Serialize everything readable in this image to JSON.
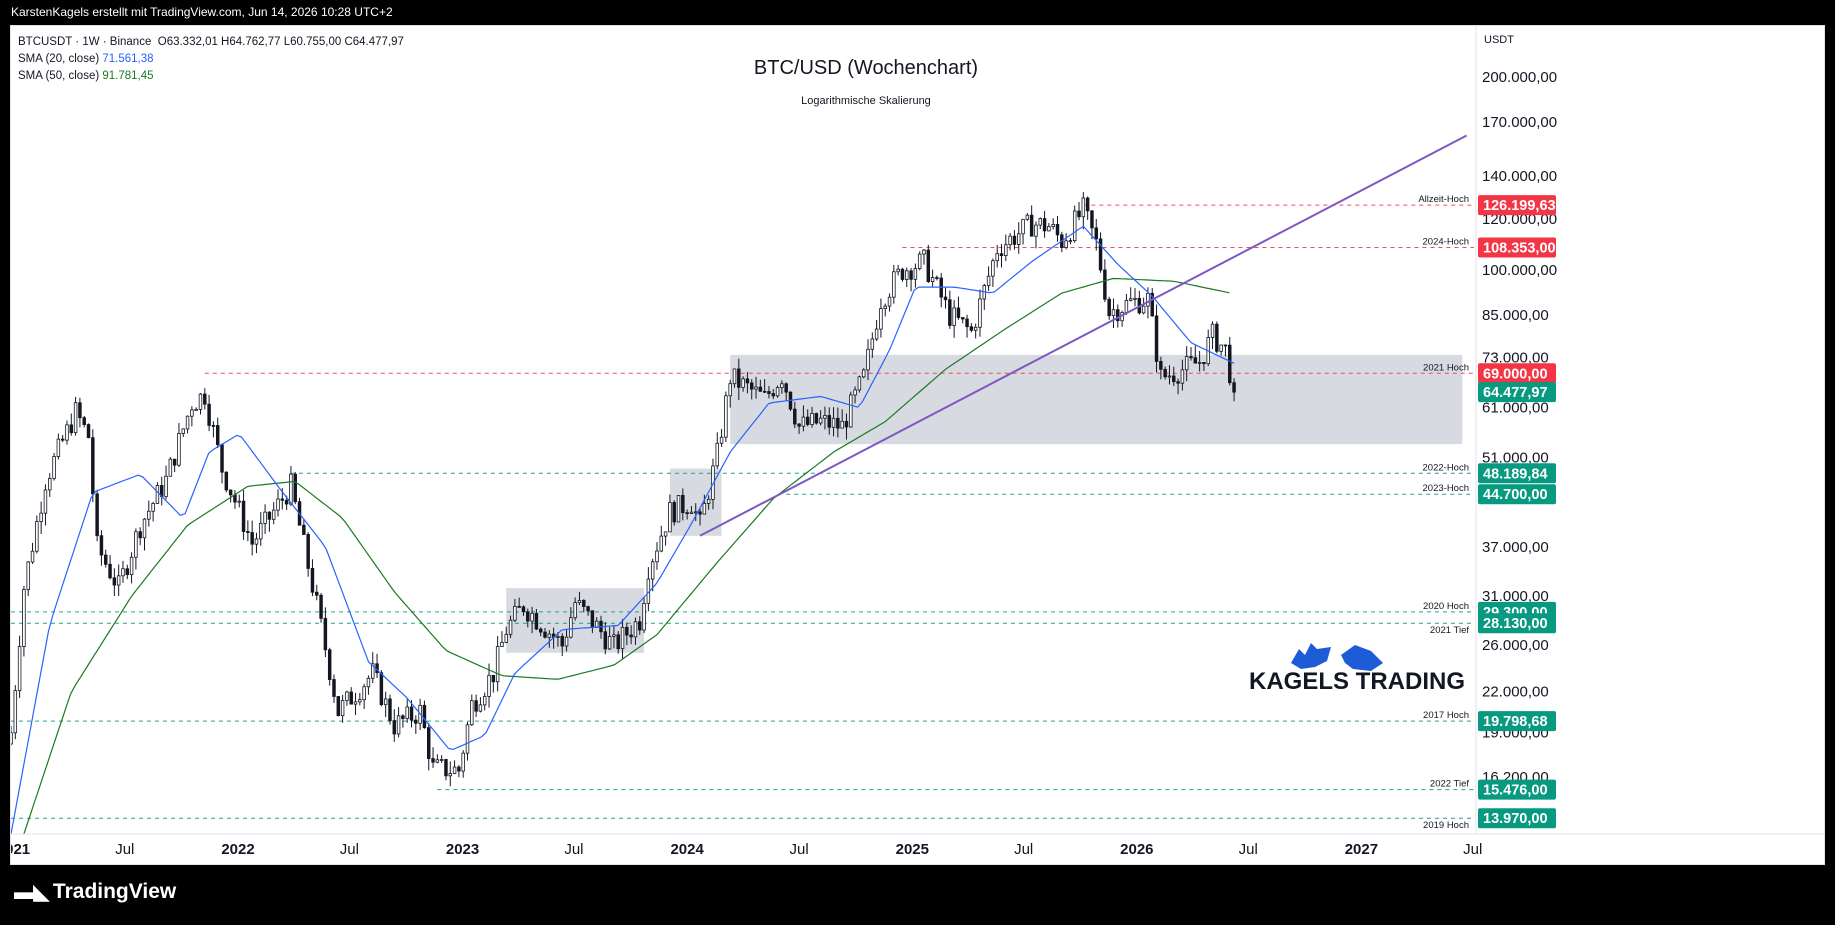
{
  "header": {
    "attribution": "KarstenKagels erstellt mit TradingView.com, Jun 14, 2026 10:28 UTC+2"
  },
  "legend": {
    "symbol": "BTCUSDT · 1W · Binance",
    "ohlc": "O63.332,01 H64.762,77 L60.755,00 C64.477,97",
    "sma20_label": "SMA (20, close)",
    "sma20_value": "71.561,38",
    "sma50_label": "SMA (50, close)",
    "sma50_value": "91.781,45"
  },
  "footer": {
    "brand": "TradingView"
  },
  "branding": {
    "kagels": "KAGELS TRADING"
  },
  "colors": {
    "up": "#089981",
    "down": "#f23645",
    "candle": "#131722",
    "sma20": "#2962ff",
    "sma50": "#1b7a22",
    "trendline": "#7e57c2",
    "red_level": "#f23645",
    "green_level": "#089981",
    "zone": "#d1d4dc"
  },
  "chart_data": {
    "type": "candlestick",
    "title": "BTC/USD (Wochenchart)",
    "subtitle": "Logarithmische Skalierung",
    "scale": "log",
    "currency": "USDT",
    "y_ticks": [
      "200.000,00",
      "170.000,00",
      "140.000,00",
      "120.000,00",
      "100.000,00",
      "85.000,00",
      "73.000,00",
      "61.000,00",
      "51.000,00",
      "37.000,00",
      "31.000,00",
      "26.000,00",
      "22.000,00",
      "19.000,00",
      "16.200,00"
    ],
    "y_tick_values": [
      200000,
      170000,
      140000,
      120000,
      100000,
      85000,
      73000,
      61000,
      51000,
      37000,
      31000,
      26000,
      22000,
      19000,
      16200
    ],
    "x_ticks": [
      "2021",
      "Jul",
      "2022",
      "Jul",
      "2023",
      "Jul",
      "2024",
      "Jul",
      "2025",
      "Jul",
      "2026",
      "Jul",
      "2027",
      "Jul"
    ],
    "x_tick_dates": [
      "2021-01-01",
      "2021-07-01",
      "2022-01-01",
      "2022-07-01",
      "2023-01-01",
      "2023-07-01",
      "2024-01-01",
      "2024-07-01",
      "2025-01-01",
      "2025-07-01",
      "2026-01-01",
      "2026-07-01",
      "2027-01-01",
      "2027-07-01"
    ],
    "x_range": [
      "2020-12-28",
      "2027-07-03"
    ],
    "y_range": [
      13200,
      240000
    ],
    "last_price": 64477.97,
    "last_price_label": "64.477,97",
    "levels": [
      {
        "label": "Allzeit-Hoch",
        "value": 126199.63,
        "value_label": "126.199,63",
        "color": "red",
        "from": "2025-10-06"
      },
      {
        "label": "2024-Hoch",
        "value": 108353.0,
        "value_label": "108.353,00",
        "color": "red",
        "from": "2024-12-16"
      },
      {
        "label": "2021 Hoch",
        "value": 69000.0,
        "value_label": "69.000,00",
        "color": "red",
        "from": "2021-11-08"
      },
      {
        "label": "2022-Hoch",
        "value": 48189.84,
        "value_label": "48.189,84",
        "color": "green",
        "from": "2022-03-28"
      },
      {
        "label": "2023-Hoch",
        "value": 44700.0,
        "value_label": "44.700,00",
        "color": "green",
        "from": "2024-06-10"
      },
      {
        "label": "2020 Hoch",
        "value": 29300.0,
        "value_label": "29.300,00",
        "color": "green",
        "from": "2020-12-28"
      },
      {
        "label": "2021 Tief",
        "value": 28130.0,
        "value_label": "28.130,00",
        "color": "green",
        "from": "2020-12-28"
      },
      {
        "label": "2017 Hoch",
        "value": 19798.68,
        "value_label": "19.798,68",
        "color": "green",
        "from": "2020-12-28"
      },
      {
        "label": "2022 Tief",
        "value": 15476.0,
        "value_label": "15.476,00",
        "color": "green",
        "from": "2022-11-21"
      },
      {
        "label": "2019 Hoch",
        "value": 13970.0,
        "value_label": "13.970,00",
        "color": "green",
        "from": "2020-12-28"
      }
    ],
    "zones": [
      {
        "from": "2023-03-13",
        "to": "2023-10-23",
        "low": 25300,
        "high": 31900
      },
      {
        "from": "2023-12-04",
        "to": "2024-02-26",
        "low": 38500,
        "high": 49000
      },
      {
        "from": "2024-03-11",
        "to": "2027-06-14",
        "low": 53500,
        "high": 73700
      }
    ],
    "trendline": [
      {
        "date": "2024-01-22",
        "value": 38500
      },
      {
        "date": "2027-06-21",
        "value": 162000
      }
    ],
    "sma_anchors": {
      "sma20": [
        [
          "2020-12-28",
          13200
        ],
        [
          "2021-03-01",
          28000
        ],
        [
          "2021-05-10",
          45000
        ],
        [
          "2021-07-26",
          48000
        ],
        [
          "2021-10-04",
          41000
        ],
        [
          "2021-11-15",
          52000
        ],
        [
          "2022-01-03",
          55500
        ],
        [
          "2022-03-07",
          46000
        ],
        [
          "2022-05-23",
          37000
        ],
        [
          "2022-08-01",
          24500
        ],
        [
          "2022-10-03",
          21500
        ],
        [
          "2022-12-12",
          17800
        ],
        [
          "2023-02-06",
          18800
        ],
        [
          "2023-03-27",
          23500
        ],
        [
          "2023-06-12",
          27500
        ],
        [
          "2023-09-11",
          27900
        ],
        [
          "2023-11-13",
          32500
        ],
        [
          "2024-01-08",
          40200
        ],
        [
          "2024-03-11",
          52000
        ],
        [
          "2024-05-13",
          62000
        ],
        [
          "2024-08-05",
          63500
        ],
        [
          "2024-10-07",
          61000
        ],
        [
          "2024-11-25",
          75000
        ],
        [
          "2025-01-06",
          94000
        ],
        [
          "2025-03-10",
          94000
        ],
        [
          "2025-05-12",
          92000
        ],
        [
          "2025-07-14",
          103000
        ],
        [
          "2025-10-06",
          117000
        ],
        [
          "2025-12-01",
          102000
        ],
        [
          "2026-01-26",
          91000
        ],
        [
          "2026-03-30",
          77000
        ],
        [
          "2026-06-08",
          71500
        ]
      ],
      "sma50": [
        [
          "2021-01-18",
          13200
        ],
        [
          "2021-04-05",
          22000
        ],
        [
          "2021-07-12",
          31000
        ],
        [
          "2021-10-11",
          40000
        ],
        [
          "2022-01-17",
          46000
        ],
        [
          "2022-04-04",
          46800
        ],
        [
          "2022-06-20",
          41000
        ],
        [
          "2022-09-12",
          31500
        ],
        [
          "2022-12-05",
          25500
        ],
        [
          "2023-03-06",
          23300
        ],
        [
          "2023-06-05",
          23000
        ],
        [
          "2023-09-04",
          24200
        ],
        [
          "2023-11-13",
          27000
        ],
        [
          "2024-02-19",
          35000
        ],
        [
          "2024-05-20",
          44000
        ],
        [
          "2024-08-26",
          52000
        ],
        [
          "2024-11-18",
          58000
        ],
        [
          "2025-02-24",
          70000
        ],
        [
          "2025-06-02",
          81000
        ],
        [
          "2025-09-01",
          92000
        ],
        [
          "2025-11-24",
          97000
        ],
        [
          "2026-03-02",
          96000
        ],
        [
          "2026-06-08",
          91800
        ]
      ]
    },
    "candle_anchors": [
      [
        "2020-12-28",
        19000
      ],
      [
        "2021-01-18",
        32000
      ],
      [
        "2021-02-22",
        47000
      ],
      [
        "2021-04-12",
        60000
      ],
      [
        "2021-05-03",
        55000
      ],
      [
        "2021-05-17",
        37000
      ],
      [
        "2021-06-21",
        32000
      ],
      [
        "2021-07-26",
        40000
      ],
      [
        "2021-09-06",
        47000
      ],
      [
        "2021-10-18",
        62000
      ],
      [
        "2021-11-08",
        64000
      ],
      [
        "2021-12-06",
        49000
      ],
      [
        "2022-01-24",
        37500
      ],
      [
        "2022-03-28",
        46000
      ],
      [
        "2022-05-09",
        30000
      ],
      [
        "2022-06-13",
        20500
      ],
      [
        "2022-08-08",
        23500
      ],
      [
        "2022-09-12",
        19500
      ],
      [
        "2022-10-24",
        20500
      ],
      [
        "2022-11-14",
        16700
      ],
      [
        "2022-12-26",
        16600
      ],
      [
        "2023-01-16",
        21000
      ],
      [
        "2023-02-20",
        23500
      ],
      [
        "2023-03-13",
        27500
      ],
      [
        "2023-04-10",
        30000
      ],
      [
        "2023-06-12",
        26000
      ],
      [
        "2023-07-03",
        30300
      ],
      [
        "2023-09-04",
        25900
      ],
      [
        "2023-10-16",
        28500
      ],
      [
        "2023-10-30",
        34500
      ],
      [
        "2023-12-04",
        42000
      ],
      [
        "2024-01-08",
        43500
      ],
      [
        "2024-01-22",
        40000
      ],
      [
        "2024-02-19",
        51500
      ],
      [
        "2024-03-11",
        68000
      ],
      [
        "2024-05-06",
        63000
      ],
      [
        "2024-06-03",
        68500
      ],
      [
        "2024-07-01",
        57000
      ],
      [
        "2024-08-05",
        58000
      ],
      [
        "2024-09-09",
        57000
      ],
      [
        "2024-10-14",
        68000
      ],
      [
        "2024-11-11",
        90000
      ],
      [
        "2024-12-16",
        100000
      ],
      [
        "2025-01-20",
        103000
      ],
      [
        "2025-03-03",
        85000
      ],
      [
        "2025-04-07",
        80000
      ],
      [
        "2025-05-19",
        108000
      ],
      [
        "2025-07-14",
        118000
      ],
      [
        "2025-08-11",
        117000
      ],
      [
        "2025-09-01",
        111000
      ],
      [
        "2025-10-06",
        124000
      ],
      [
        "2025-10-27",
        110000
      ],
      [
        "2025-11-17",
        86000
      ],
      [
        "2025-12-22",
        89000
      ],
      [
        "2026-01-19",
        90000
      ],
      [
        "2026-02-09",
        68000
      ],
      [
        "2026-03-16",
        70000
      ],
      [
        "2026-04-13",
        72000
      ],
      [
        "2026-05-04",
        79000
      ],
      [
        "2026-05-25",
        75000
      ],
      [
        "2026-06-08",
        64478
      ]
    ]
  }
}
